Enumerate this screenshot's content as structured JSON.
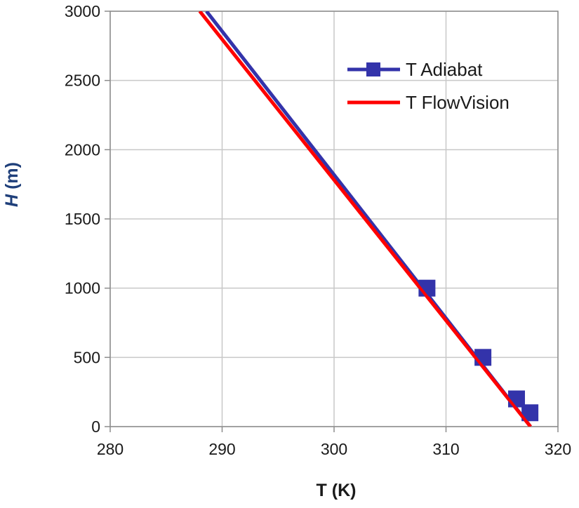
{
  "chart_data": {
    "type": "line",
    "xlabel": "T (K)",
    "ylabel_italic": "H",
    "ylabel_rest": " (m)",
    "xlim": [
      280,
      320
    ],
    "ylim": [
      0,
      3000
    ],
    "xticks": [
      280,
      290,
      300,
      310,
      320
    ],
    "yticks": [
      0,
      500,
      1000,
      1500,
      2000,
      2500,
      3000
    ],
    "grid": true,
    "legend_position": "top-right",
    "series": [
      {
        "name": "T Adiabat",
        "color": "#3333aa",
        "marker": "square",
        "line_x": [
          317.55,
          288.6
        ],
        "line_y": [
          0,
          3000
        ],
        "marker_x": [
          308.3,
          313.3,
          316.3,
          317.5
        ],
        "marker_y": [
          1000,
          500,
          200,
          100
        ]
      },
      {
        "name": "T FlowVision",
        "color": "#ff0000",
        "marker": "none",
        "line_x": [
          317.55,
          288.0
        ],
        "line_y": [
          0,
          3000
        ]
      }
    ]
  }
}
